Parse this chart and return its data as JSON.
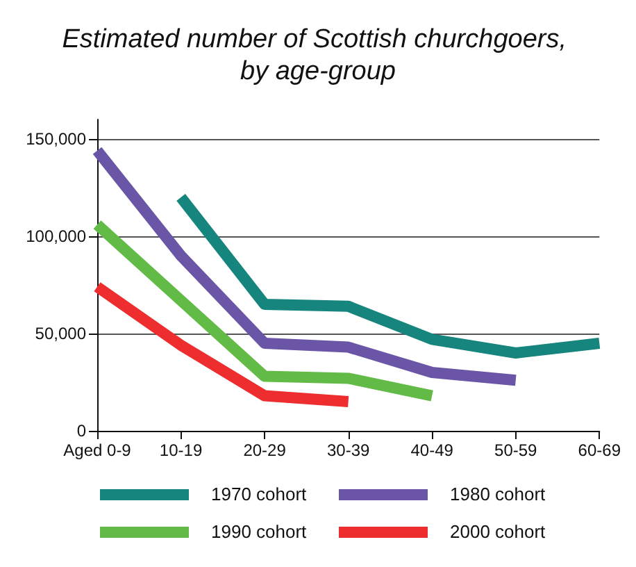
{
  "chart_data": {
    "type": "line",
    "title": "Estimated number of Scottish churchgoers, by age-group",
    "categories": [
      "Aged 0-9",
      "10-19",
      "20-29",
      "30-39",
      "40-49",
      "50-59",
      "60-69"
    ],
    "series": [
      {
        "name": "1970 cohort",
        "color": "#15857d",
        "values": [
          null,
          120000,
          65000,
          64000,
          47000,
          40000,
          45000
        ]
      },
      {
        "name": "1980 cohort",
        "color": "#6a55a6",
        "values": [
          144000,
          90000,
          45000,
          43000,
          30000,
          26000,
          null
        ]
      },
      {
        "name": "1990 cohort",
        "color": "#62bb46",
        "values": [
          106000,
          67000,
          28000,
          27000,
          18000,
          null,
          null
        ]
      },
      {
        "name": "2000 cohort",
        "color": "#ed2d2e",
        "values": [
          74000,
          44000,
          18000,
          15000,
          null,
          null,
          null
        ]
      }
    ],
    "ylim": [
      0,
      160000
    ],
    "yticks": [
      {
        "value": 0,
        "label": "0"
      },
      {
        "value": 50000,
        "label": "50,000"
      },
      {
        "value": 100000,
        "label": "100,000"
      },
      {
        "value": 150000,
        "label": "150,000"
      }
    ],
    "grid": "y",
    "legend": "bottom",
    "marker": "none",
    "line_style": "solid"
  }
}
